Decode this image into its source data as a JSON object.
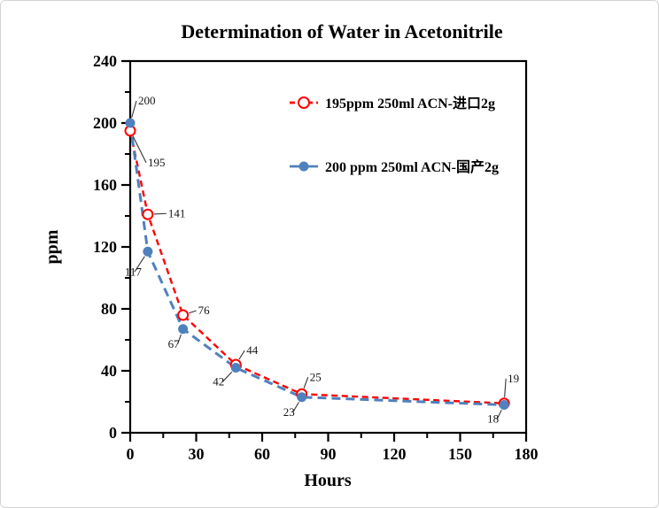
{
  "window": {
    "background": "#ffffff",
    "border_color": "#d4d4d4"
  },
  "chart_data": {
    "type": "line",
    "title": "Determination of Water in Acetonitrile",
    "xlabel": "Hours",
    "ylabel": "ppm",
    "xlim": [
      0,
      180
    ],
    "ylim": [
      0,
      240
    ],
    "x_major_ticks": [
      0,
      30,
      60,
      90,
      120,
      150,
      180
    ],
    "x_minor_ticks": [
      15,
      45,
      75,
      105,
      135,
      165
    ],
    "y_major_ticks": [
      0,
      40,
      80,
      120,
      160,
      200,
      240
    ],
    "y_minor_ticks": [
      20,
      60,
      100,
      140,
      180,
      220
    ],
    "grid": false,
    "frame_color": "#000000",
    "leader_color": "#333333",
    "x": [
      0,
      8,
      24,
      48,
      78,
      170
    ],
    "series": [
      {
        "name": "195ppm  250ml ACN-进口2g",
        "color": "#ff0000",
        "marker": "open-circle",
        "marker_radius": 5.5,
        "line_style": "dashed",
        "dash": "7 4.5",
        "stroke_width": 2.4,
        "values": [
          195,
          141,
          76,
          44,
          25,
          19
        ],
        "labels": [
          "195",
          "141",
          "76",
          "44",
          "25",
          "19"
        ],
        "label_offsets": [
          [
            20,
            40
          ],
          [
            23,
            3
          ],
          [
            17,
            -1
          ],
          [
            12,
            -12
          ],
          [
            9,
            -15
          ],
          [
            4,
            -24
          ]
        ]
      },
      {
        "name": "200 ppm 250ml ACN-国产2g",
        "color": "#4f81bd",
        "marker": "filled-circle",
        "marker_radius": 5,
        "line_style": "dashed",
        "dash": "10 6",
        "stroke_width": 3,
        "values": [
          200,
          117,
          67,
          42,
          23,
          18
        ],
        "labels": [
          "200",
          "117",
          "67",
          "42",
          "23",
          "18"
        ],
        "label_offsets": [
          [
            9,
            -21
          ],
          [
            -26,
            27
          ],
          [
            -17,
            21
          ],
          [
            -26,
            20
          ],
          [
            -21,
            21
          ],
          [
            -19,
            20
          ]
        ]
      }
    ],
    "legend": {
      "position": "inside-top-center",
      "items": [
        {
          "label": "195ppm  250ml ACN-进口2g",
          "color": "#ff0000",
          "marker": "open-circle",
          "dash": "6 4"
        },
        {
          "label": "200 ppm 250ml ACN-国产2g",
          "color": "#4f81bd",
          "marker": "filled-circle",
          "dash": ""
        }
      ]
    }
  }
}
